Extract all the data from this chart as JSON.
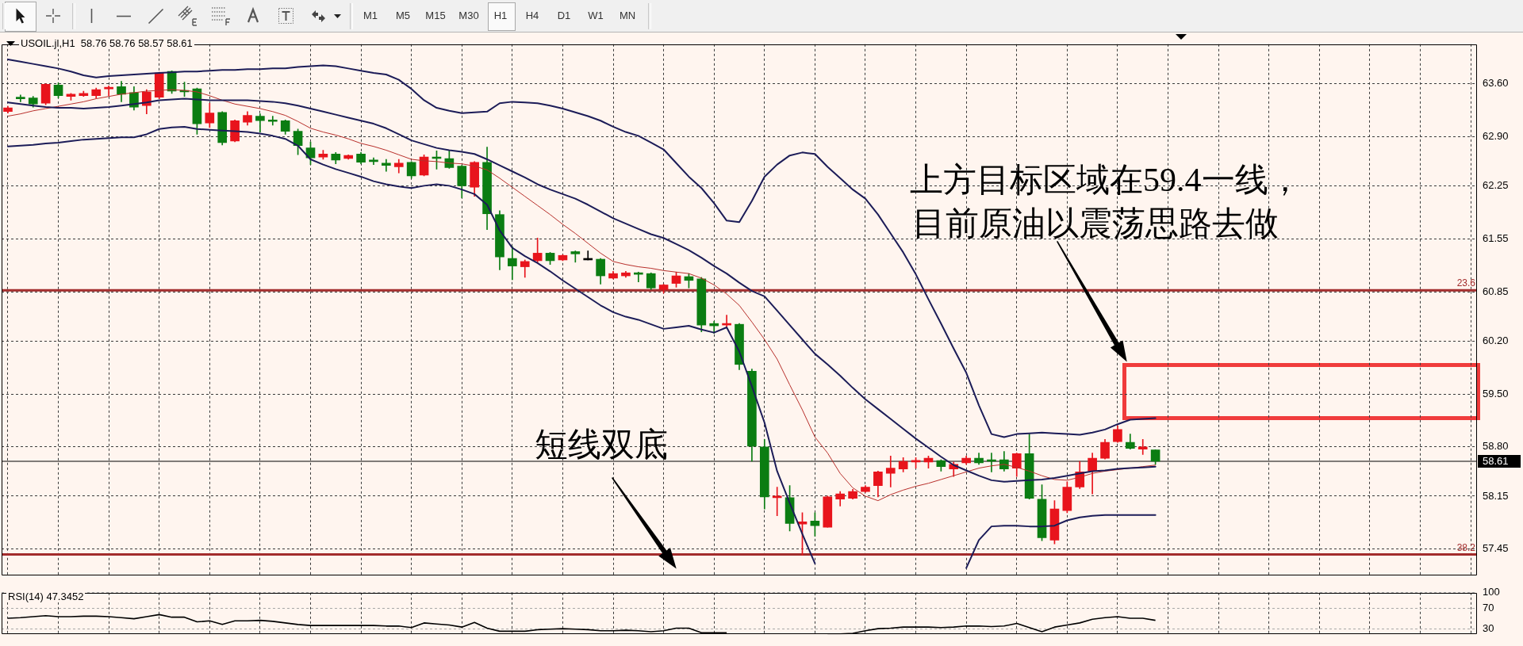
{
  "chart_data": [
    {
      "type": "other",
      "annotations": [
        "M1",
        "M5",
        "M15",
        "M30",
        "H1",
        "H4",
        "D1",
        "W1",
        "MN"
      ]
    },
    {
      "type": "candlestick",
      "title": "USOIL.jl,H1  58.76 58.76 58.57 58.61",
      "categories": [
        null,
        null,
        null,
        null,
        null,
        null,
        null,
        null,
        null,
        null,
        null,
        null,
        null,
        null,
        null,
        null,
        null,
        null,
        null,
        null,
        null,
        null,
        null,
        null,
        null,
        null,
        null,
        null,
        null,
        null,
        null,
        null,
        null,
        null,
        null,
        null,
        null,
        null,
        null,
        null,
        null,
        null,
        null,
        null,
        null,
        null,
        null,
        null,
        null,
        null,
        null,
        null,
        null,
        null,
        null,
        null,
        null,
        null,
        null,
        null,
        null,
        null,
        null,
        null,
        null,
        null,
        null,
        null,
        null,
        null,
        null,
        null,
        null,
        null,
        null,
        null,
        null,
        null,
        null,
        null,
        null,
        null,
        null,
        null,
        null,
        null,
        null,
        null,
        null,
        null,
        null,
        null,
        null,
        null,
        null,
        null,
        null,
        null,
        null,
        null,
        null,
        null,
        null,
        null,
        null,
        null,
        null,
        null,
        null,
        null,
        null,
        null,
        null,
        null,
        null,
        null,
        null
      ],
      "ohlc": [
        [
          63.23,
          63.3,
          63.21,
          63.28
        ],
        [
          63.41,
          63.45,
          63.36,
          63.4
        ],
        [
          63.41,
          63.43,
          63.29,
          63.33
        ],
        [
          63.34,
          63.6,
          63.32,
          63.59
        ],
        [
          63.58,
          63.61,
          63.41,
          63.44
        ],
        [
          63.43,
          63.47,
          63.38,
          63.46
        ],
        [
          63.44,
          63.5,
          63.43,
          63.47
        ],
        [
          63.44,
          63.54,
          63.41,
          63.52
        ],
        [
          63.53,
          63.57,
          63.44,
          63.55
        ],
        [
          63.56,
          63.63,
          63.36,
          63.46
        ],
        [
          63.48,
          63.56,
          63.25,
          63.29
        ],
        [
          63.31,
          63.52,
          63.2,
          63.49
        ],
        [
          63.42,
          63.75,
          63.4,
          63.74
        ],
        [
          63.76,
          63.77,
          63.47,
          63.5
        ],
        [
          63.5,
          63.62,
          63.43,
          63.49
        ],
        [
          63.53,
          63.54,
          62.93,
          63.07
        ],
        [
          63.08,
          63.34,
          63.02,
          63.21
        ],
        [
          63.22,
          63.23,
          62.79,
          62.82
        ],
        [
          62.84,
          63.12,
          62.83,
          63.11
        ],
        [
          63.09,
          63.23,
          63.05,
          63.18
        ],
        [
          63.17,
          63.2,
          62.96,
          63.11
        ],
        [
          63.11,
          63.17,
          63.05,
          63.1
        ],
        [
          63.11,
          63.12,
          62.93,
          62.97
        ],
        [
          62.97,
          63.0,
          62.66,
          62.78
        ],
        [
          62.75,
          62.83,
          62.53,
          62.62
        ],
        [
          62.63,
          62.72,
          62.6,
          62.67
        ],
        [
          62.67,
          62.69,
          62.54,
          62.59
        ],
        [
          62.61,
          62.66,
          62.6,
          62.65
        ],
        [
          62.67,
          62.69,
          62.54,
          62.56
        ],
        [
          62.58,
          62.62,
          62.53,
          62.57
        ],
        [
          62.55,
          62.6,
          62.44,
          62.52
        ],
        [
          62.5,
          62.6,
          62.42,
          62.55
        ],
        [
          62.56,
          62.57,
          62.35,
          62.38
        ],
        [
          62.39,
          62.66,
          62.38,
          62.63
        ],
        [
          62.62,
          62.71,
          62.47,
          62.61
        ],
        [
          62.61,
          62.71,
          62.48,
          62.49
        ],
        [
          62.51,
          62.52,
          62.09,
          62.25
        ],
        [
          62.23,
          62.57,
          62.11,
          62.56
        ],
        [
          62.56,
          62.76,
          61.67,
          61.88
        ],
        [
          61.87,
          61.92,
          61.14,
          61.31
        ],
        [
          61.29,
          61.45,
          61.01,
          61.19
        ],
        [
          61.18,
          61.27,
          61.04,
          61.25
        ],
        [
          61.26,
          61.56,
          61.24,
          61.36
        ],
        [
          61.36,
          61.37,
          61.21,
          61.26
        ],
        [
          61.27,
          61.34,
          61.26,
          61.33
        ],
        [
          61.38,
          61.39,
          61.24,
          61.35
        ],
        [
          61.27,
          61.39,
          61.27,
          61.27
        ],
        [
          61.28,
          61.29,
          60.95,
          61.06
        ],
        [
          61.03,
          61.12,
          61.02,
          61.09
        ],
        [
          61.06,
          61.12,
          61.04,
          61.1
        ],
        [
          61.09,
          61.11,
          60.98,
          61.08
        ],
        [
          61.09,
          61.1,
          60.88,
          60.9
        ],
        [
          60.88,
          60.95,
          60.83,
          60.94
        ],
        [
          60.96,
          61.11,
          60.91,
          61.06
        ],
        [
          61.05,
          61.09,
          60.9,
          61.0
        ],
        [
          61.02,
          61.04,
          60.32,
          60.41
        ],
        [
          60.43,
          60.46,
          60.3,
          60.4
        ],
        [
          60.41,
          60.54,
          60.37,
          60.43
        ],
        [
          60.42,
          60.43,
          59.82,
          59.89
        ],
        [
          59.8,
          59.83,
          58.61,
          58.81
        ],
        [
          58.8,
          58.9,
          57.98,
          58.14
        ],
        [
          58.13,
          58.27,
          57.89,
          58.14
        ],
        [
          58.13,
          58.29,
          57.69,
          57.79
        ],
        [
          57.78,
          57.93,
          57.37,
          57.81
        ],
        [
          57.82,
          57.93,
          57.62,
          57.76
        ],
        [
          57.74,
          58.15,
          57.74,
          58.14
        ],
        [
          58.11,
          58.21,
          58.02,
          58.18
        ],
        [
          58.12,
          58.24,
          58.11,
          58.21
        ],
        [
          58.21,
          58.29,
          58.2,
          58.27
        ],
        [
          58.29,
          58.48,
          58.14,
          58.47
        ],
        [
          58.45,
          58.68,
          58.27,
          58.52
        ],
        [
          58.51,
          58.66,
          58.47,
          58.61
        ],
        [
          58.6,
          58.66,
          58.52,
          58.62
        ],
        [
          58.6,
          58.68,
          58.52,
          58.65
        ],
        [
          58.62,
          58.63,
          58.48,
          58.54
        ],
        [
          58.51,
          58.6,
          58.41,
          58.57
        ],
        [
          58.59,
          58.68,
          58.57,
          58.65
        ],
        [
          58.65,
          58.72,
          58.57,
          58.59
        ],
        [
          58.62,
          58.72,
          58.47,
          58.61
        ],
        [
          58.63,
          58.74,
          58.48,
          58.51
        ],
        [
          58.52,
          58.72,
          58.41,
          58.71
        ],
        [
          58.71,
          58.97,
          58.11,
          58.12
        ],
        [
          58.11,
          58.3,
          57.56,
          57.6
        ],
        [
          57.57,
          58.09,
          57.52,
          57.98
        ],
        [
          57.96,
          58.34,
          57.93,
          58.27
        ],
        [
          58.27,
          58.61,
          58.25,
          58.47
        ],
        [
          58.48,
          58.72,
          58.18,
          58.65
        ],
        [
          58.65,
          58.9,
          58.64,
          58.86
        ],
        [
          58.87,
          59.08,
          58.86,
          59.03
        ],
        [
          58.86,
          58.97,
          58.77,
          58.78
        ],
        [
          58.77,
          58.9,
          58.7,
          58.8
        ],
        [
          58.76,
          58.76,
          58.57,
          58.61
        ],
        null,
        null,
        null,
        null,
        null,
        null,
        null,
        null,
        null,
        null,
        null,
        null,
        null,
        null,
        null,
        null,
        null,
        null,
        null,
        null,
        null,
        null,
        null,
        null,
        null
      ],
      "colors": [
        "#e8141c",
        "#0b7d12",
        "#0b7d12",
        "#e8141c",
        "#0b7d12",
        "#e8141c",
        "#e8141c",
        "#e8141c",
        "#e8141c",
        "#0b7d12",
        "#0b7d12",
        "#e8141c",
        "#e8141c",
        "#0b7d12",
        "#0b7d12",
        "#0b7d12",
        "#e8141c",
        "#0b7d12",
        "#e8141c",
        "#e8141c",
        "#0b7d12",
        "#0b7d12",
        "#0b7d12",
        "#0b7d12",
        "#0b7d12",
        "#e8141c",
        "#0b7d12",
        "#e8141c",
        "#0b7d12",
        "#0b7d12",
        "#0b7d12",
        "#e8141c",
        "#0b7d12",
        "#e8141c",
        "#0b7d12",
        "#0b7d12",
        "#0b7d12",
        "#e8141c",
        "#0b7d12",
        "#0b7d12",
        "#0b7d12",
        "#e8141c",
        "#e8141c",
        "#0b7d12",
        "#e8141c",
        "#0b7d12",
        "#000000",
        "#0b7d12",
        "#e8141c",
        "#e8141c",
        "#0b7d12",
        "#0b7d12",
        "#e8141c",
        "#e8141c",
        "#0b7d12",
        "#0b7d12",
        "#0b7d12",
        "#e8141c",
        "#0b7d12",
        "#0b7d12",
        "#0b7d12",
        "#e8141c",
        "#0b7d12",
        "#e8141c",
        "#0b7d12",
        "#e8141c",
        "#e8141c",
        "#e8141c",
        "#e8141c",
        "#e8141c",
        "#e8141c",
        "#e8141c",
        "#e8141c",
        "#e8141c",
        "#0b7d12",
        "#e8141c",
        "#e8141c",
        "#0b7d12",
        "#0b7d12",
        "#0b7d12",
        "#e8141c",
        "#0b7d12",
        "#0b7d12",
        "#e8141c",
        "#e8141c",
        "#e8141c",
        "#e8141c",
        "#e8141c",
        "#e8141c",
        "#0b7d12",
        "#e8141c",
        "#0b7d12",
        null,
        null,
        null,
        null,
        null,
        null,
        null,
        null,
        null,
        null,
        null,
        null,
        null,
        null,
        null,
        null,
        null,
        null,
        null,
        null,
        null,
        null,
        null,
        null,
        null
      ],
      "series": [
        {
          "type": "line",
          "color": "#1c1c58",
          "values": [
            63.92,
            63.89,
            63.86,
            63.83,
            63.8,
            63.76,
            63.71,
            63.68,
            63.7,
            63.71,
            63.72,
            63.73,
            63.74,
            63.75,
            63.76,
            63.76,
            63.77,
            63.78,
            63.78,
            63.79,
            63.79,
            63.8,
            63.8,
            63.82,
            63.83,
            63.84,
            63.83,
            63.8,
            63.77,
            63.74,
            63.72,
            63.65,
            63.53,
            63.38,
            63.28,
            63.24,
            63.21,
            63.22,
            63.23,
            63.34,
            63.36,
            63.35,
            63.34,
            63.31,
            63.27,
            63.22,
            63.17,
            63.11,
            63.03,
            62.96,
            62.91,
            62.82,
            62.73,
            62.55,
            62.37,
            62.22,
            62.02,
            61.79,
            61.77,
            62.05,
            62.37,
            62.53,
            62.65,
            62.69,
            62.67,
            62.5,
            62.35,
            62.2,
            62.08,
            61.87,
            61.62,
            61.37,
            61.08,
            60.75,
            60.43,
            60.1,
            59.78,
            59.35,
            58.97,
            58.93,
            58.97,
            58.98,
            58.99,
            58.98,
            58.97,
            58.96,
            58.99,
            59.03,
            59.1,
            59.16,
            59.17,
            59.18,
            null,
            null,
            null,
            null,
            null,
            null,
            null,
            null,
            null,
            null,
            null,
            null,
            null,
            null,
            null,
            null,
            null,
            null,
            null,
            null,
            null,
            null,
            null,
            null,
            null
          ]
        },
        {
          "type": "line",
          "color": "#1c1c58",
          "values": [
            63.35,
            63.33,
            63.31,
            63.29,
            63.28,
            63.28,
            63.27,
            63.28,
            63.29,
            63.31,
            63.33,
            63.35,
            63.38,
            63.39,
            63.4,
            63.39,
            63.38,
            63.38,
            63.38,
            63.38,
            63.37,
            63.36,
            63.34,
            63.31,
            63.27,
            63.23,
            63.19,
            63.15,
            63.11,
            63.07,
            63.01,
            62.93,
            62.85,
            62.8,
            62.75,
            62.72,
            62.7,
            62.67,
            62.6,
            62.52,
            62.44,
            62.36,
            62.27,
            62.2,
            62.14,
            62.08,
            62.0,
            61.91,
            61.82,
            61.75,
            61.68,
            61.61,
            61.56,
            61.48,
            61.4,
            61.3,
            61.19,
            61.09,
            60.97,
            60.86,
            60.79,
            60.6,
            60.41,
            60.22,
            60.03,
            59.89,
            59.74,
            59.58,
            59.43,
            59.3,
            59.17,
            59.04,
            58.91,
            58.79,
            58.67,
            58.56,
            58.49,
            58.42,
            58.36,
            58.34,
            58.35,
            58.36,
            58.37,
            58.39,
            58.42,
            58.45,
            58.48,
            58.49,
            58.51,
            58.52,
            58.53,
            58.54,
            null,
            null,
            null,
            null,
            null,
            null,
            null,
            null,
            null,
            null,
            null,
            null,
            null,
            null,
            null,
            null,
            null,
            null,
            null,
            null,
            null,
            null,
            null,
            null,
            null
          ]
        },
        {
          "type": "line",
          "color": "#1c1c58",
          "values": [
            62.77,
            62.78,
            62.79,
            62.81,
            62.82,
            62.84,
            62.86,
            62.87,
            62.88,
            62.89,
            62.89,
            62.93,
            63.0,
            63.02,
            63.03,
            63.0,
            62.99,
            62.98,
            62.97,
            62.96,
            62.94,
            62.91,
            62.87,
            62.78,
            62.6,
            62.53,
            62.47,
            62.42,
            62.37,
            62.31,
            62.27,
            62.24,
            62.22,
            62.25,
            62.27,
            62.25,
            62.2,
            62.14,
            62.0,
            61.66,
            61.43,
            61.32,
            61.23,
            61.12,
            61.0,
            60.89,
            60.78,
            60.67,
            60.58,
            60.52,
            60.48,
            60.42,
            60.36,
            60.38,
            60.4,
            60.35,
            60.31,
            60.38,
            60.06,
            59.6,
            59.12,
            58.48,
            58.06,
            57.65,
            57.26,
            null,
            null,
            null,
            null,
            null,
            null,
            null,
            null,
            null,
            null,
            null,
            57.2,
            57.57,
            57.75,
            57.76,
            57.76,
            57.75,
            57.75,
            57.76,
            57.83,
            57.87,
            57.89,
            57.9,
            57.9,
            57.9,
            57.9,
            57.9,
            null,
            null,
            null,
            null,
            null,
            null,
            null,
            null,
            null,
            null,
            null,
            null,
            null,
            null,
            null,
            null,
            null,
            null,
            null,
            null,
            null,
            null,
            null,
            null,
            null
          ]
        },
        {
          "type": "line",
          "color": "#b8302c",
          "values": [
            63.17,
            63.2,
            63.24,
            63.27,
            63.3,
            63.33,
            63.36,
            63.4,
            63.43,
            63.46,
            63.48,
            63.5,
            63.51,
            63.52,
            63.51,
            63.49,
            63.44,
            63.38,
            63.33,
            63.3,
            63.27,
            63.23,
            63.18,
            63.1,
            63.01,
            62.96,
            62.92,
            62.87,
            62.81,
            62.77,
            62.72,
            62.66,
            62.6,
            62.58,
            62.57,
            62.55,
            62.54,
            62.51,
            62.46,
            62.35,
            62.23,
            62.11,
            61.99,
            61.87,
            61.74,
            61.62,
            61.49,
            61.36,
            61.25,
            61.21,
            61.18,
            61.16,
            61.13,
            61.11,
            61.09,
            61.03,
            60.94,
            60.82,
            60.67,
            60.45,
            60.22,
            59.96,
            59.62,
            59.29,
            58.93,
            58.72,
            58.45,
            58.26,
            58.15,
            58.09,
            58.17,
            58.23,
            58.28,
            58.32,
            58.37,
            58.42,
            58.47,
            58.52,
            58.55,
            58.57,
            58.53,
            58.48,
            58.42,
            58.37,
            58.36,
            58.4,
            58.45,
            58.48,
            58.5,
            58.52,
            58.54,
            58.56,
            null,
            null,
            null,
            null,
            null,
            null,
            null,
            null,
            null,
            null,
            null,
            null,
            null,
            null,
            null,
            null,
            null,
            null,
            null,
            null,
            null,
            null,
            null,
            null,
            null
          ]
        }
      ],
      "ylim": [
        57.1,
        64.12
      ],
      "yticks": [
        {
          "value": 63.6,
          "label": "63.60"
        },
        {
          "value": 62.9,
          "label": "62.90"
        },
        62.25,
        61.55,
        60.85,
        {
          "value": 60.2,
          "label": "60.20"
        },
        {
          "value": 59.5,
          "label": "59.50"
        },
        {
          "value": 58.8,
          "label": "58.80"
        },
        58.15,
        57.45
      ],
      "ref_lines": [
        {
          "axis": "y",
          "value": 60.87,
          "color": "#a22c2c"
        },
        {
          "axis": "y",
          "value": 57.38,
          "color": "#a22c2c"
        },
        {
          "axis": "y",
          "value": 58.61,
          "label": "58.61",
          "color": "#000000"
        }
      ],
      "annotations": [
        "短线双底",
        "上方目标区域在59.4一线，",
        "目前原油以震荡思路去做",
        {
          "text": "23.6",
          "y": 60.87
        },
        {
          "text": "38.2",
          "y": 57.38
        }
      ],
      "grid": true,
      "tick_labels": "y"
    },
    {
      "type": "line",
      "title": "RSI(14) 47.3452",
      "categories": [
        null,
        null,
        null,
        null,
        null,
        null,
        null,
        null,
        null,
        null,
        null,
        null,
        null,
        null,
        null,
        null,
        null,
        null,
        null,
        null,
        null,
        null,
        null,
        null,
        null,
        null,
        null,
        null,
        null,
        null,
        null,
        null,
        null,
        null,
        null,
        null,
        null,
        null,
        null,
        null,
        null,
        null,
        null,
        null,
        null,
        null,
        null,
        null,
        null,
        null,
        null,
        null,
        null,
        null,
        null,
        null,
        null,
        null,
        null,
        null,
        null,
        null,
        null,
        null,
        null,
        null,
        null,
        null,
        null,
        null,
        null,
        null,
        null,
        null,
        null,
        null,
        null,
        null,
        null,
        null,
        null,
        null,
        null,
        null,
        null,
        null,
        null,
        null,
        null,
        null,
        null,
        null,
        null,
        null,
        null,
        null,
        null,
        null,
        null,
        null,
        null,
        null,
        null,
        null,
        null,
        null,
        null,
        null,
        null,
        null,
        null,
        null,
        null,
        null,
        null,
        null,
        null
      ],
      "values": [
        51,
        52,
        54,
        56,
        54,
        54,
        55,
        55,
        54,
        52,
        50,
        54,
        58,
        53,
        53,
        44,
        46,
        39,
        46,
        46,
        47,
        45,
        42,
        39,
        37,
        37,
        37,
        37,
        37,
        37,
        36,
        36,
        33,
        42,
        40,
        38,
        34,
        43,
        32,
        26,
        26,
        26,
        29,
        30,
        31,
        30,
        29,
        27,
        27,
        28,
        27,
        25,
        27,
        32,
        32,
        23,
        23,
        23,
        null,
        null,
        null,
        null,
        null,
        null,
        null,
        21,
        21,
        22,
        27,
        31,
        32,
        34,
        34,
        34,
        33,
        34,
        36,
        36,
        35,
        36,
        41,
        33,
        25,
        34,
        38,
        42,
        49,
        52,
        54,
        51,
        51,
        47,
        null,
        null,
        null,
        null,
        null,
        null,
        null,
        null,
        null,
        null,
        null,
        null,
        null,
        null,
        null,
        null,
        null,
        null,
        null,
        null,
        null,
        null,
        null,
        null,
        null
      ],
      "color": "#000000",
      "ylim": [
        20.2,
        100
      ],
      "yticks": [
        100,
        70,
        30
      ],
      "grid": true,
      "tick_labels": "y"
    }
  ]
}
